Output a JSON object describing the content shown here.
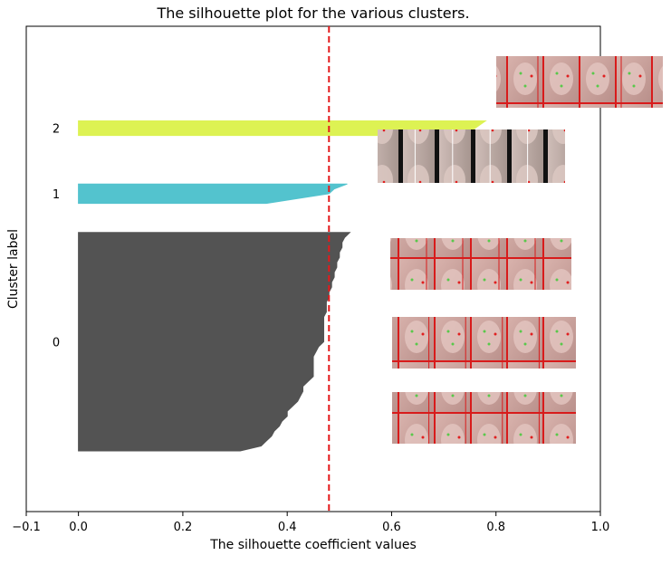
{
  "chart_data": {
    "type": "area",
    "title": "The silhouette plot for the various clusters.",
    "xlabel": "The silhouette coefficient values",
    "ylabel": "Cluster label",
    "xlim": [
      -0.1,
      1.0
    ],
    "xticks": [
      -0.1,
      0.0,
      0.2,
      0.4,
      0.6,
      0.8,
      1.0
    ],
    "xtick_labels": [
      "−0.1",
      "0.0",
      "0.2",
      "0.4",
      "0.6",
      "0.8",
      "1.0"
    ],
    "ylim": [
      0,
      100
    ],
    "average_silhouette_score": 0.48,
    "average_line_color": "#e41a1c",
    "grid": false,
    "clusters": [
      {
        "label": "0",
        "color": "#4a4a4a",
        "y_range": [
          12.5,
          57.5
        ],
        "values": [
          0.52,
          0.51,
          0.505,
          0.505,
          0.5,
          0.5,
          0.495,
          0.495,
          0.49,
          0.49,
          0.485,
          0.485,
          0.48,
          0.48,
          0.475,
          0.475,
          0.475,
          0.47,
          0.47,
          0.47,
          0.47,
          0.47,
          0.47,
          0.46,
          0.455,
          0.45,
          0.45,
          0.45,
          0.45,
          0.45,
          0.44,
          0.43,
          0.43,
          0.425,
          0.42,
          0.41,
          0.4,
          0.4,
          0.39,
          0.385,
          0.375,
          0.37,
          0.36,
          0.35,
          0.31
        ]
      },
      {
        "label": "1",
        "color": "#4ac0cc",
        "y_range": [
          63.5,
          67.5
        ],
        "values": [
          0.515,
          0.49,
          0.48,
          0.42,
          0.36
        ]
      },
      {
        "label": "2",
        "color": "#dcf24a",
        "y_range": [
          77.5,
          80.5
        ],
        "values": [
          0.78,
          0.76,
          0.74
        ]
      }
    ]
  }
}
